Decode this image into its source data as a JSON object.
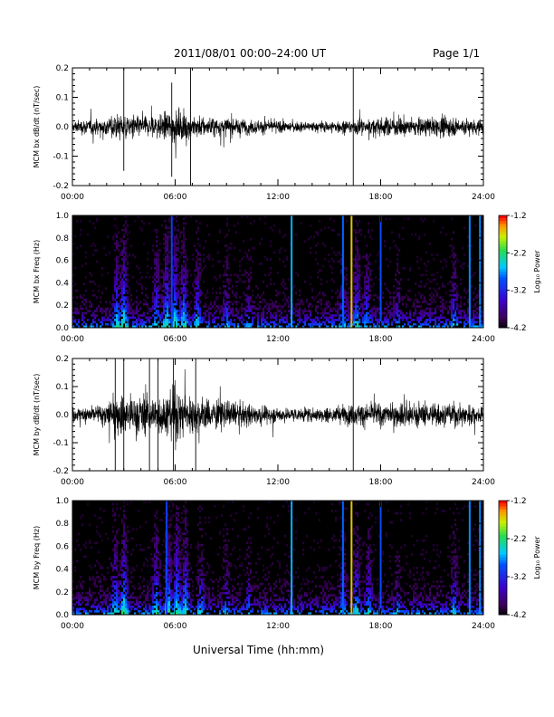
{
  "header": {
    "title": "2011/08/01  00:00–24:00 UT",
    "page": "Page 1/1"
  },
  "footer": {
    "xlabel": "Universal Time (hh:mm)"
  },
  "colors": {
    "trace": "#000000",
    "spectrogram_background": "#000000"
  },
  "chart_data": [
    {
      "type": "line",
      "ylabel": "MCM bx dB/dt (nT/sec)",
      "x_range_hours": [
        0,
        24
      ],
      "xticks": [
        "00:00",
        "06:00",
        "12:00",
        "18:00",
        "24:00"
      ],
      "ylim": [
        -0.2,
        0.2
      ],
      "yticks": [
        "-0.2",
        "-0.1",
        "0.0",
        "0.1",
        "0.2"
      ],
      "envelope": {
        "hour": [
          0,
          1,
          2,
          3,
          4,
          5,
          6,
          7,
          8,
          9,
          10,
          11,
          12,
          13,
          14,
          15,
          16,
          17,
          18,
          19,
          20,
          21,
          22,
          23,
          24
        ],
        "amplitude": [
          0.03,
          0.04,
          0.05,
          0.07,
          0.05,
          0.06,
          0.08,
          0.06,
          0.05,
          0.045,
          0.04,
          0.035,
          0.03,
          0.025,
          0.025,
          0.03,
          0.035,
          0.04,
          0.045,
          0.05,
          0.045,
          0.045,
          0.05,
          0.045,
          0.04
        ]
      },
      "spikes": [
        {
          "hour": 3.0,
          "min": -0.15,
          "max": 0.2
        },
        {
          "hour": 5.8,
          "min": -0.17,
          "max": 0.15
        },
        {
          "hour": 6.9,
          "min": -0.2,
          "max": 0.2
        },
        {
          "hour": 16.4,
          "min": -0.2,
          "max": 0.2
        }
      ]
    },
    {
      "type": "heatmap",
      "ylabel": "MCM bx Freq (Hz)",
      "x_range_hours": [
        0,
        24
      ],
      "xticks": [
        "00:00",
        "06:00",
        "12:00",
        "18:00",
        "24:00"
      ],
      "ylim": [
        0.0,
        1.0
      ],
      "yticks": [
        "0.0",
        "0.2",
        "0.4",
        "0.6",
        "0.8",
        "1.0"
      ],
      "colorbar": {
        "label": "Log₁₀ Power",
        "range": [
          -4.2,
          -1.2
        ],
        "ticks": [
          "-1.2",
          "-2.2",
          "-3.2",
          "-4.2"
        ]
      },
      "activity_hours": [
        {
          "hour": 2.6,
          "level": 0.8
        },
        {
          "hour": 3.0,
          "level": 1.0
        },
        {
          "hour": 4.9,
          "level": 0.7
        },
        {
          "hour": 5.5,
          "level": 1.0
        },
        {
          "hour": 6.0,
          "level": 1.0
        },
        {
          "hour": 6.5,
          "level": 0.9
        },
        {
          "hour": 7.3,
          "level": 0.7
        },
        {
          "hour": 9.0,
          "level": 0.5
        },
        {
          "hour": 10.3,
          "level": 0.4
        },
        {
          "hour": 15.8,
          "level": 0.6
        },
        {
          "hour": 16.6,
          "level": 0.8
        },
        {
          "hour": 17.2,
          "level": 0.6
        },
        {
          "hour": 19.0,
          "level": 0.4
        },
        {
          "hour": 22.3,
          "level": 0.6
        }
      ],
      "broadband_lines": [
        {
          "hour": 5.8,
          "power": -3.0
        },
        {
          "hour": 12.8,
          "power": -2.6
        },
        {
          "hour": 15.8,
          "power": -2.8
        },
        {
          "hour": 16.3,
          "power": -1.6
        },
        {
          "hour": 18.0,
          "power": -2.9
        },
        {
          "hour": 23.2,
          "power": -2.7
        },
        {
          "hour": 23.8,
          "power": -2.7
        }
      ]
    },
    {
      "type": "line",
      "ylabel": "MCM by dB/dt (nT/sec)",
      "x_range_hours": [
        0,
        24
      ],
      "xticks": [
        "00:00",
        "06:00",
        "12:00",
        "18:00",
        "24:00"
      ],
      "ylim": [
        -0.2,
        0.2
      ],
      "yticks": [
        "-0.2",
        "-0.1",
        "0.0",
        "0.1",
        "0.2"
      ],
      "envelope": {
        "hour": [
          0,
          1,
          2,
          3,
          4,
          5,
          6,
          7,
          8,
          9,
          10,
          11,
          12,
          13,
          14,
          15,
          16,
          17,
          18,
          19,
          20,
          21,
          22,
          23,
          24
        ],
        "amplitude": [
          0.04,
          0.05,
          0.07,
          0.12,
          0.1,
          0.09,
          0.15,
          0.1,
          0.08,
          0.07,
          0.06,
          0.05,
          0.04,
          0.035,
          0.04,
          0.045,
          0.05,
          0.06,
          0.06,
          0.07,
          0.065,
          0.06,
          0.06,
          0.06,
          0.05
        ]
      },
      "spikes": [
        {
          "hour": 2.5,
          "min": -0.2,
          "max": 0.2
        },
        {
          "hour": 3.0,
          "min": -0.2,
          "max": 0.2
        },
        {
          "hour": 4.5,
          "min": -0.2,
          "max": 0.2
        },
        {
          "hour": 5.0,
          "min": -0.2,
          "max": 0.2
        },
        {
          "hour": 5.9,
          "min": -0.2,
          "max": 0.2
        },
        {
          "hour": 7.2,
          "min": -0.2,
          "max": 0.2
        },
        {
          "hour": 16.4,
          "min": -0.2,
          "max": 0.2
        }
      ]
    },
    {
      "type": "heatmap",
      "ylabel": "MCM by Freq (Hz)",
      "x_range_hours": [
        0,
        24
      ],
      "xticks": [
        "00:00",
        "06:00",
        "12:00",
        "18:00",
        "24:00"
      ],
      "ylim": [
        0.0,
        1.0
      ],
      "yticks": [
        "0.0",
        "0.2",
        "0.4",
        "0.6",
        "0.8",
        "1.0"
      ],
      "colorbar": {
        "label": "Log₁₀ Power",
        "range": [
          -4.2,
          -1.2
        ],
        "ticks": [
          "-1.2",
          "-2.2",
          "-3.2",
          "-4.2"
        ]
      },
      "activity_hours": [
        {
          "hour": 2.5,
          "level": 0.8
        },
        {
          "hour": 3.0,
          "level": 1.0
        },
        {
          "hour": 4.9,
          "level": 0.8
        },
        {
          "hour": 5.6,
          "level": 1.0
        },
        {
          "hour": 6.1,
          "level": 1.0
        },
        {
          "hour": 6.6,
          "level": 0.9
        },
        {
          "hour": 7.5,
          "level": 0.6
        },
        {
          "hour": 9.0,
          "level": 0.5
        },
        {
          "hour": 10.3,
          "level": 0.4
        },
        {
          "hour": 15.8,
          "level": 0.6
        },
        {
          "hour": 16.6,
          "level": 0.8
        },
        {
          "hour": 17.3,
          "level": 0.6
        },
        {
          "hour": 19.0,
          "level": 0.4
        },
        {
          "hour": 22.3,
          "level": 0.6
        }
      ],
      "broadband_lines": [
        {
          "hour": 5.5,
          "power": -3.0
        },
        {
          "hour": 12.8,
          "power": -2.6
        },
        {
          "hour": 15.8,
          "power": -2.8
        },
        {
          "hour": 16.3,
          "power": -1.6
        },
        {
          "hour": 18.0,
          "power": -2.9
        },
        {
          "hour": 23.2,
          "power": -2.7
        },
        {
          "hour": 23.8,
          "power": -2.7
        }
      ]
    }
  ]
}
